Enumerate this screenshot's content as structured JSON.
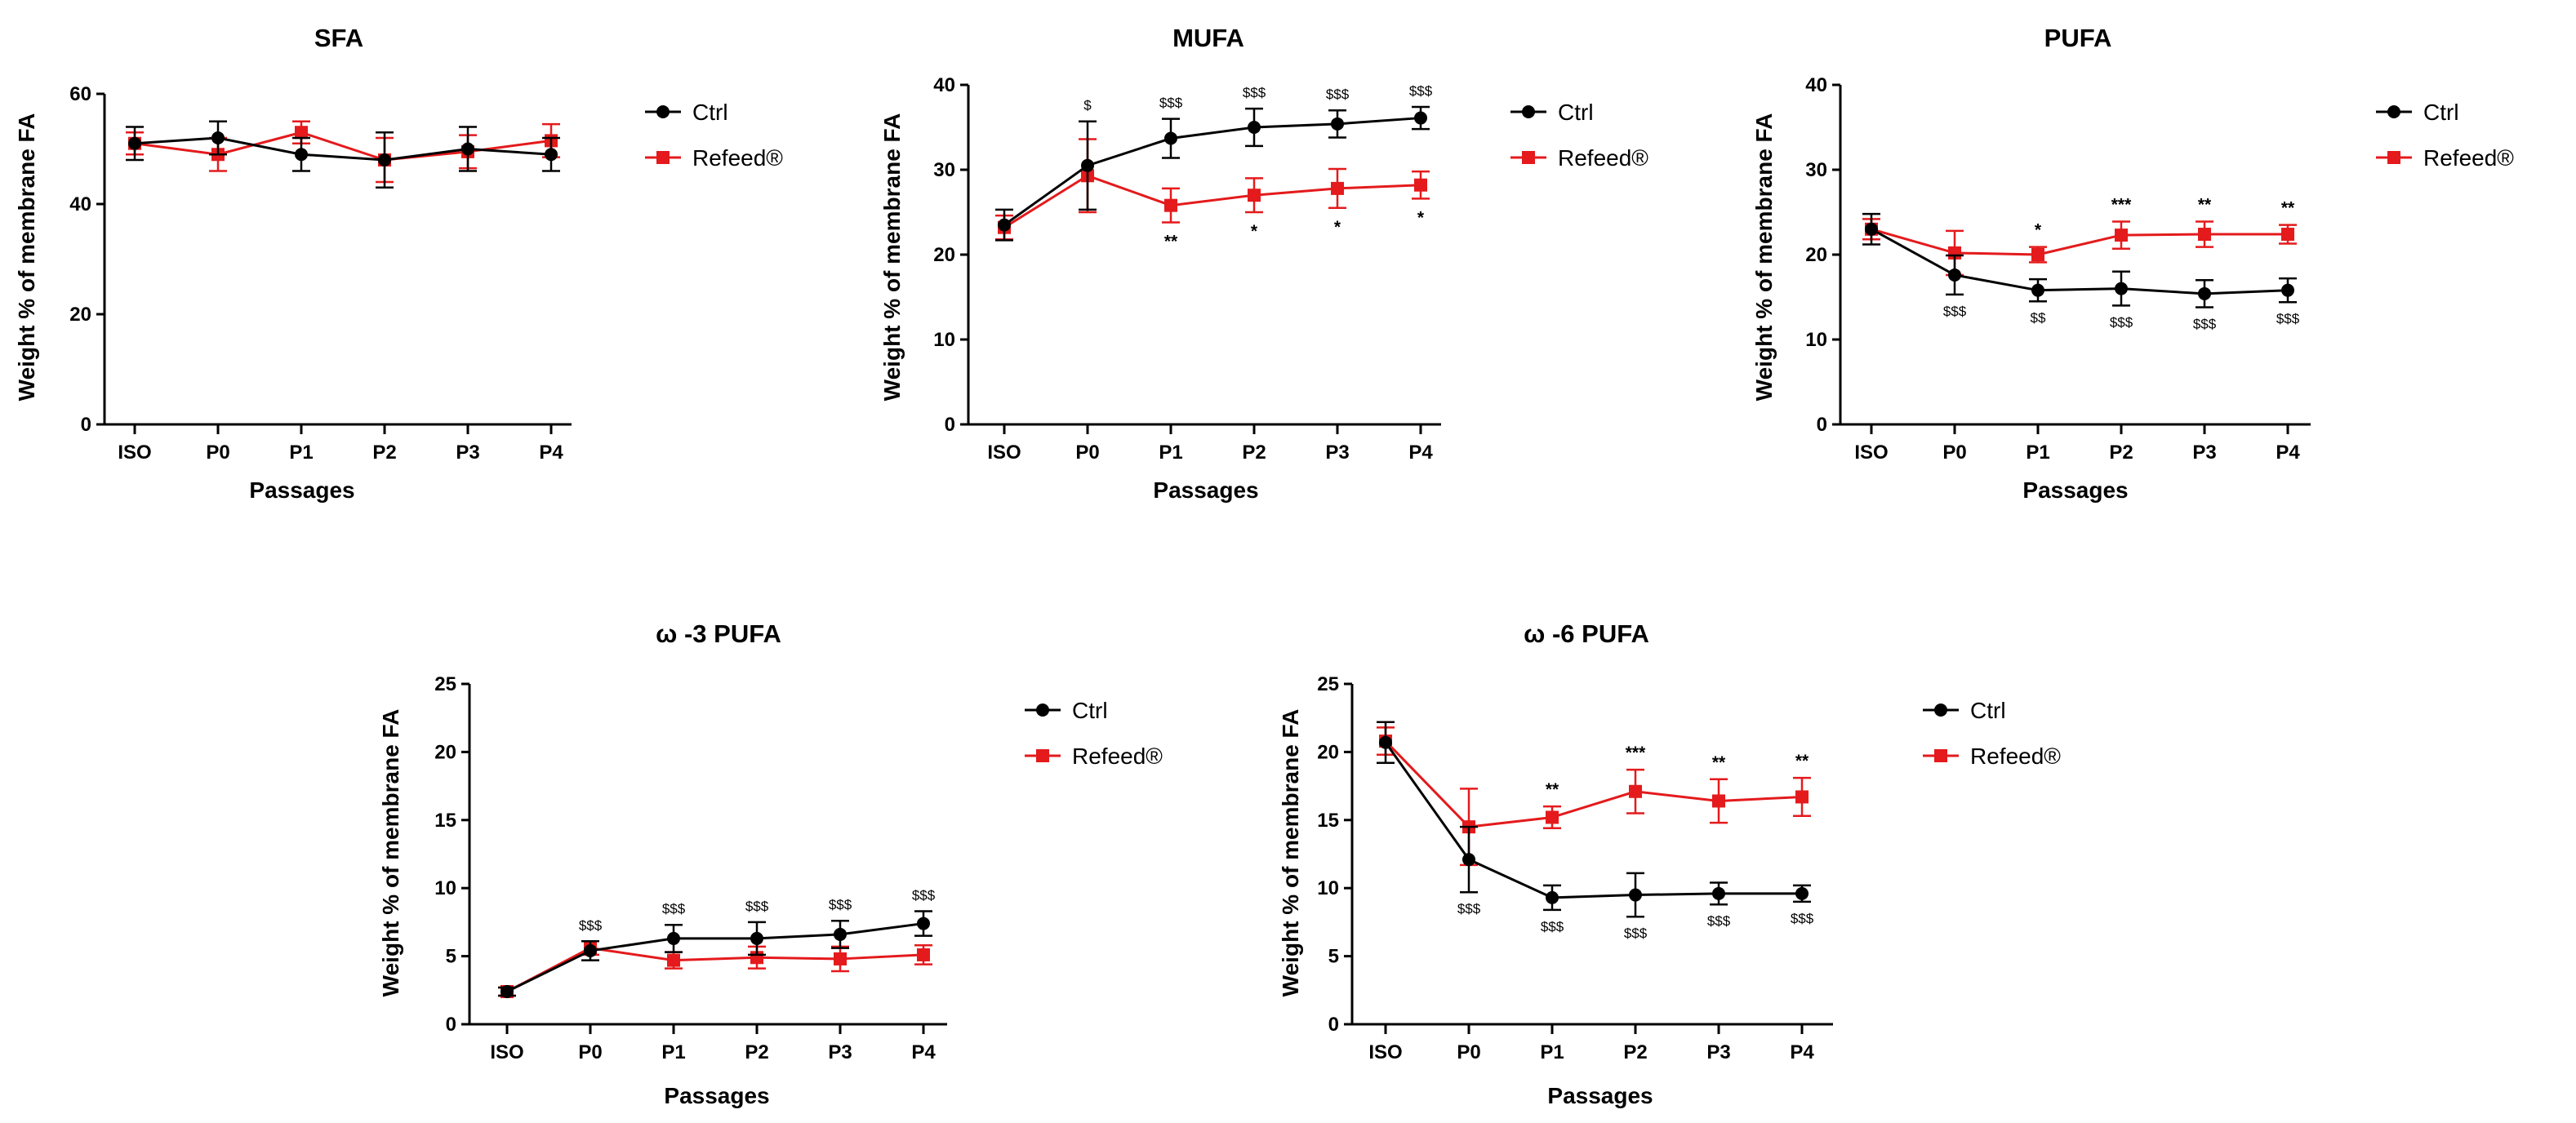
{
  "figure": {
    "series_colors": {
      "Ctrl": "#000000",
      "Refeed®": "#e41a1c"
    },
    "axis_color": "#000000"
  },
  "chart_data": [
    {
      "id": "sfa",
      "type": "line",
      "title": "SFA",
      "xlabel": "Passages",
      "ylabel": "Weight % of membrane FA",
      "categories": [
        "ISO",
        "P0",
        "P1",
        "P2",
        "P3",
        "P4"
      ],
      "ylim": [
        0,
        60
      ],
      "yticks": [
        0,
        20,
        40,
        60
      ],
      "legend": [
        "Ctrl",
        "Refeed®"
      ],
      "series": [
        {
          "name": "Ctrl",
          "marker": "circle",
          "values": [
            51,
            52,
            49,
            48,
            50,
            49
          ],
          "err": [
            3,
            3,
            3,
            5,
            4,
            3
          ]
        },
        {
          "name": "Refeed®",
          "marker": "square",
          "values": [
            51,
            49,
            53,
            48,
            49.5,
            51.5
          ],
          "err": [
            2,
            3,
            2,
            4,
            3,
            3
          ]
        }
      ],
      "annotations_above": [],
      "annotations_below": []
    },
    {
      "id": "mufa",
      "type": "line",
      "title": "MUFA",
      "xlabel": "Passages",
      "ylabel": "Weight % of membrane FA",
      "categories": [
        "ISO",
        "P0",
        "P1",
        "P2",
        "P3",
        "P4"
      ],
      "ylim": [
        0,
        40
      ],
      "yticks": [
        0,
        10,
        20,
        30,
        40
      ],
      "legend": [
        "Ctrl",
        "Refeed®"
      ],
      "series": [
        {
          "name": "Ctrl",
          "marker": "circle",
          "values": [
            23.5,
            30.5,
            33.7,
            35,
            35.4,
            36.1
          ],
          "err": [
            1.8,
            5.2,
            2.3,
            2.2,
            1.6,
            1.3
          ]
        },
        {
          "name": "Refeed®",
          "marker": "square",
          "values": [
            23.2,
            29.3,
            25.8,
            27,
            27.8,
            28.2
          ],
          "err": [
            1.4,
            4.3,
            2,
            2,
            2.3,
            1.6
          ]
        }
      ],
      "annotations_above": [
        "",
        "$",
        "$$$",
        "$$$",
        "$$$",
        "$$$"
      ],
      "annotations_below": [
        "",
        "",
        "**",
        "*",
        "*",
        "*"
      ]
    },
    {
      "id": "pufa",
      "type": "line",
      "title": "PUFA",
      "xlabel": "Passages",
      "ylabel": "Weight % of membrane FA",
      "categories": [
        "ISO",
        "P0",
        "P1",
        "P2",
        "P3",
        "P4"
      ],
      "ylim": [
        0,
        40
      ],
      "yticks": [
        0,
        10,
        20,
        30,
        40
      ],
      "legend": [
        "Ctrl",
        "Refeed®"
      ],
      "series": [
        {
          "name": "Ctrl",
          "marker": "circle",
          "values": [
            23,
            17.6,
            15.8,
            16,
            15.4,
            15.8
          ],
          "err": [
            1.8,
            2.3,
            1.3,
            2,
            1.6,
            1.4
          ]
        },
        {
          "name": "Refeed®",
          "marker": "square",
          "values": [
            23,
            20.2,
            20,
            22.3,
            22.4,
            22.4
          ],
          "err": [
            1.2,
            2.6,
            0.9,
            1.6,
            1.5,
            1.1
          ]
        }
      ],
      "annotations_above": [
        "",
        "",
        "*",
        "***",
        "**",
        "**"
      ],
      "annotations_below": [
        "",
        "$$$",
        "$$",
        "$$$",
        "$$$",
        "$$$"
      ]
    },
    {
      "id": "omega3",
      "type": "line",
      "title": "ω -3 PUFA",
      "xlabel": "Passages",
      "ylabel": "Weight % of membrane FA",
      "categories": [
        "ISO",
        "P0",
        "P1",
        "P2",
        "P3",
        "P4"
      ],
      "ylim": [
        0,
        25
      ],
      "yticks": [
        0,
        5,
        10,
        15,
        20,
        25
      ],
      "legend": [
        "Ctrl",
        "Refeed®"
      ],
      "series": [
        {
          "name": "Ctrl",
          "marker": "circle",
          "values": [
            2.4,
            5.4,
            6.3,
            6.3,
            6.6,
            7.4
          ],
          "err": [
            0.3,
            0.7,
            1,
            1.2,
            1,
            0.9
          ]
        },
        {
          "name": "Refeed®",
          "marker": "square",
          "values": [
            2.4,
            5.6,
            4.7,
            4.9,
            4.8,
            5.1
          ],
          "err": [
            0.3,
            0.5,
            0.6,
            0.8,
            0.9,
            0.7
          ]
        }
      ],
      "annotations_above": [
        "",
        "$$$",
        "$$$",
        "$$$",
        "$$$",
        "$$$"
      ],
      "annotations_below": [
        "",
        "",
        "",
        "",
        "",
        ""
      ]
    },
    {
      "id": "omega6",
      "type": "line",
      "title": "ω -6 PUFA",
      "xlabel": "Passages",
      "ylabel": "Weight % of membrane FA",
      "categories": [
        "ISO",
        "P0",
        "P1",
        "P2",
        "P3",
        "P4"
      ],
      "ylim": [
        0,
        25
      ],
      "yticks": [
        0,
        5,
        10,
        15,
        20,
        25
      ],
      "legend": [
        "Ctrl",
        "Refeed®"
      ],
      "series": [
        {
          "name": "Ctrl",
          "marker": "circle",
          "values": [
            20.7,
            12.1,
            9.3,
            9.5,
            9.6,
            9.6
          ],
          "err": [
            1.5,
            2.4,
            0.9,
            1.6,
            0.8,
            0.6
          ]
        },
        {
          "name": "Refeed®",
          "marker": "square",
          "values": [
            20.8,
            14.5,
            15.2,
            17.1,
            16.4,
            16.7
          ],
          "err": [
            1,
            2.8,
            0.8,
            1.6,
            1.6,
            1.4
          ]
        }
      ],
      "annotations_above": [
        "",
        "",
        "**",
        "***",
        "**",
        "**"
      ],
      "annotations_below": [
        "",
        "$$$",
        "$$$",
        "$$$",
        "$$$",
        "$$$"
      ]
    }
  ]
}
